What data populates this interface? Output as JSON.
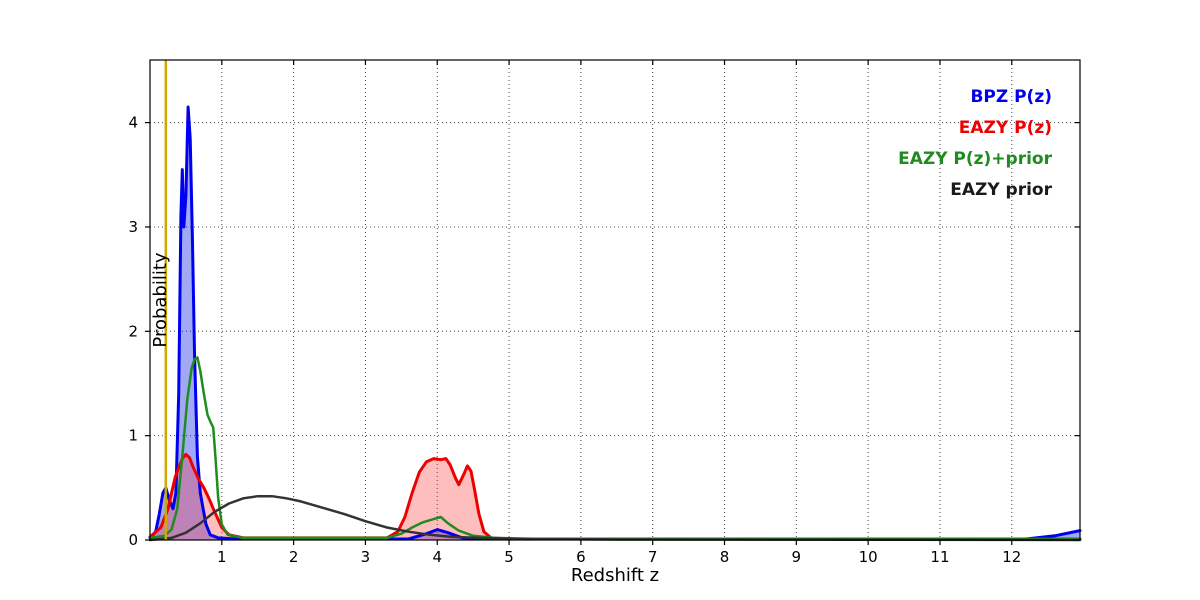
{
  "figure": {
    "xlabel": "Redshift z",
    "ylabel": "Probability",
    "background": "#ffffff"
  },
  "legend": {
    "position": "upper right",
    "items": [
      {
        "label": "BPZ P(z)",
        "color": "#0000ee"
      },
      {
        "label": "EAZY P(z)",
        "color": "#ee0000"
      },
      {
        "label": "EAZY P(z)+prior",
        "color": "#1e8c1e"
      },
      {
        "label": "EAZY prior",
        "color": "#1a1a1a"
      }
    ]
  },
  "chart_data": {
    "type": "line",
    "title": "",
    "xlabel": "Redshift z",
    "ylabel": "Probability",
    "xlim": [
      0,
      12.95
    ],
    "ylim": [
      0,
      4.6
    ],
    "xticks": [
      1,
      2,
      3,
      4,
      5,
      6,
      7,
      8,
      9,
      10,
      11,
      12
    ],
    "yticks": [
      0,
      1,
      2,
      3,
      4
    ],
    "grid": "dotted",
    "grid_color": "#444444",
    "legend_position": "upper right",
    "vline": {
      "x": 0.22,
      "color": "#ccaa00",
      "name": "vertical-marker-line"
    },
    "series": [
      {
        "name": "BPZ P(z)",
        "color": "#0000ee",
        "width": 3,
        "fill": "rgba(30,50,230,0.42)",
        "points": [
          [
            0,
            0.02
          ],
          [
            0.08,
            0.08
          ],
          [
            0.13,
            0.25
          ],
          [
            0.18,
            0.45
          ],
          [
            0.22,
            0.5
          ],
          [
            0.27,
            0.38
          ],
          [
            0.32,
            0.3
          ],
          [
            0.36,
            0.45
          ],
          [
            0.4,
            1.4
          ],
          [
            0.43,
            3.1
          ],
          [
            0.45,
            3.55
          ],
          [
            0.47,
            3.0
          ],
          [
            0.5,
            3.3
          ],
          [
            0.53,
            4.15
          ],
          [
            0.56,
            3.85
          ],
          [
            0.59,
            2.9
          ],
          [
            0.62,
            1.8
          ],
          [
            0.66,
            0.8
          ],
          [
            0.7,
            0.45
          ],
          [
            0.74,
            0.3
          ],
          [
            0.78,
            0.15
          ],
          [
            0.84,
            0.05
          ],
          [
            0.95,
            0.02
          ],
          [
            1.2,
            0.01
          ],
          [
            3.6,
            0.01
          ],
          [
            3.85,
            0.06
          ],
          [
            4.0,
            0.1
          ],
          [
            4.15,
            0.07
          ],
          [
            4.35,
            0.02
          ],
          [
            5,
            0.01
          ],
          [
            12.2,
            0.01
          ],
          [
            12.6,
            0.04
          ],
          [
            12.95,
            0.09
          ]
        ]
      },
      {
        "name": "EAZY P(z)",
        "color": "#ee0000",
        "width": 3,
        "fill": "rgba(255,40,40,0.3)",
        "points": [
          [
            0,
            0.03
          ],
          [
            0.15,
            0.12
          ],
          [
            0.25,
            0.3
          ],
          [
            0.35,
            0.6
          ],
          [
            0.45,
            0.78
          ],
          [
            0.5,
            0.82
          ],
          [
            0.55,
            0.79
          ],
          [
            0.6,
            0.7
          ],
          [
            0.68,
            0.58
          ],
          [
            0.75,
            0.5
          ],
          [
            0.82,
            0.4
          ],
          [
            0.9,
            0.27
          ],
          [
            1.0,
            0.12
          ],
          [
            1.1,
            0.05
          ],
          [
            1.3,
            0.02
          ],
          [
            3.3,
            0.02
          ],
          [
            3.45,
            0.08
          ],
          [
            3.55,
            0.22
          ],
          [
            3.65,
            0.45
          ],
          [
            3.75,
            0.65
          ],
          [
            3.85,
            0.75
          ],
          [
            3.95,
            0.78
          ],
          [
            4.05,
            0.77
          ],
          [
            4.12,
            0.78
          ],
          [
            4.18,
            0.72
          ],
          [
            4.25,
            0.6
          ],
          [
            4.3,
            0.53
          ],
          [
            4.37,
            0.63
          ],
          [
            4.42,
            0.71
          ],
          [
            4.47,
            0.66
          ],
          [
            4.52,
            0.48
          ],
          [
            4.58,
            0.25
          ],
          [
            4.65,
            0.08
          ],
          [
            4.75,
            0.02
          ],
          [
            5.0,
            0.01
          ],
          [
            12.95,
            0.01
          ]
        ]
      },
      {
        "name": "EAZY P(z)+prior",
        "color": "#1e8c1e",
        "width": 2.5,
        "fill": null,
        "points": [
          [
            0,
            0.02
          ],
          [
            0.2,
            0.04
          ],
          [
            0.3,
            0.1
          ],
          [
            0.38,
            0.3
          ],
          [
            0.45,
            0.8
          ],
          [
            0.52,
            1.35
          ],
          [
            0.58,
            1.65
          ],
          [
            0.62,
            1.73
          ],
          [
            0.66,
            1.75
          ],
          [
            0.7,
            1.62
          ],
          [
            0.75,
            1.4
          ],
          [
            0.8,
            1.2
          ],
          [
            0.85,
            1.12
          ],
          [
            0.88,
            1.08
          ],
          [
            0.91,
            0.8
          ],
          [
            0.95,
            0.4
          ],
          [
            1.0,
            0.15
          ],
          [
            1.08,
            0.05
          ],
          [
            1.3,
            0.02
          ],
          [
            3.3,
            0.02
          ],
          [
            3.5,
            0.06
          ],
          [
            3.65,
            0.12
          ],
          [
            3.8,
            0.17
          ],
          [
            3.95,
            0.2
          ],
          [
            4.05,
            0.22
          ],
          [
            4.15,
            0.16
          ],
          [
            4.3,
            0.09
          ],
          [
            4.5,
            0.04
          ],
          [
            4.8,
            0.02
          ],
          [
            5.5,
            0.01
          ],
          [
            12.95,
            0.01
          ]
        ]
      },
      {
        "name": "EAZY prior",
        "color": "#333333",
        "width": 2.5,
        "fill": null,
        "points": [
          [
            0,
            0.0
          ],
          [
            0.3,
            0.02
          ],
          [
            0.5,
            0.07
          ],
          [
            0.7,
            0.16
          ],
          [
            0.9,
            0.27
          ],
          [
            1.1,
            0.35
          ],
          [
            1.3,
            0.4
          ],
          [
            1.5,
            0.42
          ],
          [
            1.7,
            0.42
          ],
          [
            1.9,
            0.4
          ],
          [
            2.1,
            0.37
          ],
          [
            2.4,
            0.31
          ],
          [
            2.7,
            0.25
          ],
          [
            3.0,
            0.18
          ],
          [
            3.3,
            0.12
          ],
          [
            3.6,
            0.08
          ],
          [
            3.9,
            0.05
          ],
          [
            4.2,
            0.03
          ],
          [
            4.6,
            0.02
          ],
          [
            5.2,
            0.01
          ],
          [
            6.5,
            0.005
          ],
          [
            12.95,
            0.0
          ]
        ]
      }
    ]
  }
}
